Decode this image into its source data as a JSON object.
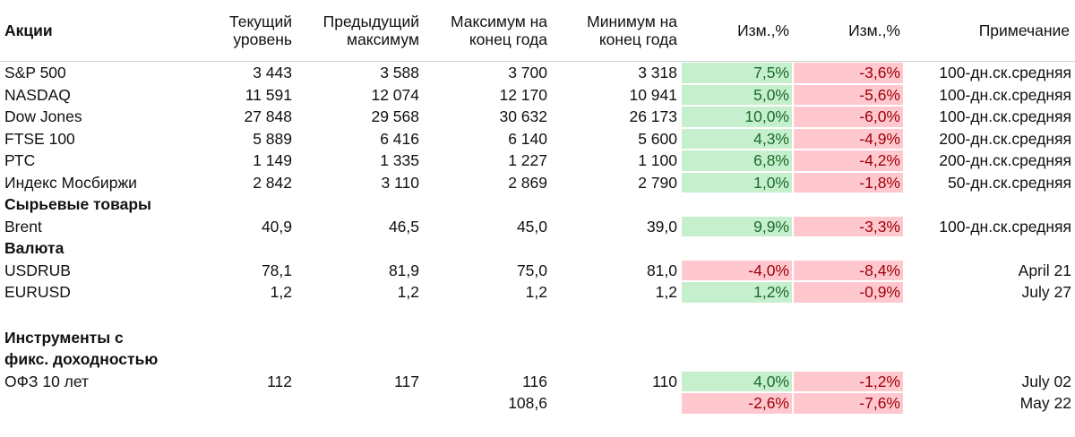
{
  "columns": [
    "Акции",
    "Текущий\nуровень",
    "Предыдущий\nмаксимум",
    "Максимум на\nконец года",
    "Минимум на\nконец года",
    "Изм.,%",
    "Изм.,%",
    "Примечание"
  ],
  "header": {
    "col0": "Акции",
    "col1_l1": "Текущий",
    "col1_l2": "уровень",
    "col2_l1": "Предыдущий",
    "col2_l2": "максимум",
    "col3_l1": "Максимум на",
    "col3_l2": "конец года",
    "col4_l1": "Минимум на",
    "col4_l2": "конец года",
    "col5": "Изм.,%",
    "col6": "Изм.,%",
    "col7": "Примечание"
  },
  "rows": [
    {
      "name": "S&P 500",
      "cur": "3 443",
      "prev": "3 588",
      "max": "3 700",
      "min": "3 318",
      "ch1": "7,5%",
      "ch2": "-3,6%",
      "note": "100-дн.ск.средняя"
    },
    {
      "name": "NASDAQ",
      "cur": "11 591",
      "prev": "12 074",
      "max": "12 170",
      "min": "10 941",
      "ch1": "5,0%",
      "ch2": "-5,6%",
      "note": "100-дн.ск.средняя"
    },
    {
      "name": "Dow Jones",
      "cur": "27 848",
      "prev": "29 568",
      "max": "30 632",
      "min": "26 173",
      "ch1": "10,0%",
      "ch2": "-6,0%",
      "note": "100-дн.ск.средняя"
    },
    {
      "name": "FTSE 100",
      "cur": "5 889",
      "prev": "6 416",
      "max": "6 140",
      "min": "5 600",
      "ch1": "4,3%",
      "ch2": "-4,9%",
      "note": "200-дн.ск.средняя"
    },
    {
      "name": "РТС",
      "cur": "1 149",
      "prev": "1 335",
      "max": "1 227",
      "min": "1 100",
      "ch1": "6,8%",
      "ch2": "-4,2%",
      "note": "200-дн.ск.средняя"
    },
    {
      "name": "Индекс Мосбиржи",
      "cur": "2 842",
      "prev": "3 110",
      "max": "2 869",
      "min": "2 790",
      "ch1": "1,0%",
      "ch2": "-1,8%",
      "note": "50-дн.ск.средняя"
    },
    {
      "section": "Сырьевые товары"
    },
    {
      "name": "Brent",
      "cur": "40,9",
      "prev": "46,5",
      "max": "45,0",
      "min": "39,0",
      "ch1": "9,9%",
      "ch2": "-3,3%",
      "note": "100-дн.ск.средняя"
    },
    {
      "section": "Валюта"
    },
    {
      "name": "USDRUB",
      "cur": "78,1",
      "prev": "81,9",
      "max": "75,0",
      "min": "81,0",
      "ch1": "-4,0%",
      "ch2": "-8,4%",
      "note": "April 21"
    },
    {
      "name": "EURUSD",
      "cur": "1,2",
      "prev": "1,2",
      "max": "1,2",
      "min": "1,2",
      "ch1": "1,2%",
      "ch2": "-0,9%",
      "note": "July 27"
    },
    {
      "section": "Инструменты с фикс. доходностью"
    },
    {
      "name": "ОФЗ 10 лет",
      "cur": "112",
      "prev": "117",
      "max": "116",
      "min": "110",
      "ch1": "4,0%",
      "ch2": "-1,2%",
      "note": "July 02"
    },
    {
      "name": "",
      "cur": "",
      "prev": "",
      "max": "108,6",
      "min": "",
      "ch1": "-2,6%",
      "ch2": "-7,6%",
      "note": "May 22"
    }
  ],
  "colors": {
    "positive_fill": "#c6efce",
    "positive_text": "#1a6b2a",
    "negative_fill": "#ffc7ce",
    "negative_text": "#9c0006"
  }
}
